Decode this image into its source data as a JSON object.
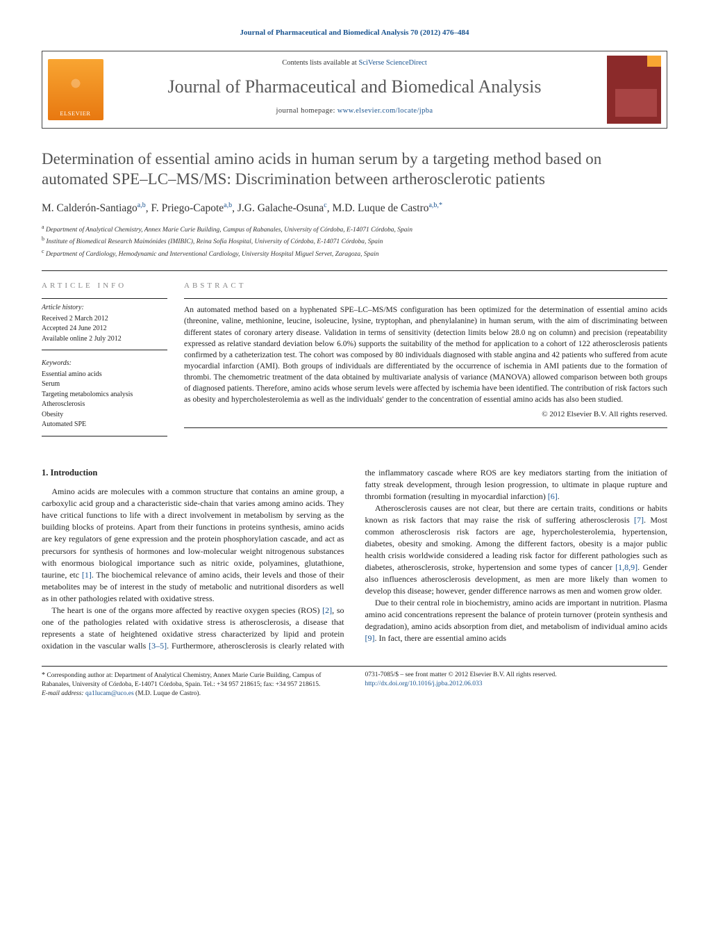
{
  "header": {
    "citation": "Journal of Pharmaceutical and Biomedical Analysis 70 (2012) 476–484",
    "contents_prefix": "Contents lists available at ",
    "contents_link": "SciVerse ScienceDirect",
    "journal_name": "Journal of Pharmaceutical and Biomedical Analysis",
    "homepage_prefix": "journal homepage: ",
    "homepage_url": "www.elsevier.com/locate/jpba",
    "publisher_logo_text": "ELSEVIER"
  },
  "article": {
    "title": "Determination of essential amino acids in human serum by a targeting method based on automated SPE–LC–MS/MS: Discrimination between artherosclerotic patients",
    "authors_html": "M. Calderón-Santiago",
    "author1": "M. Calderón-Santiago",
    "author1_aff": "a,b",
    "author2": "F. Priego-Capote",
    "author2_aff": "a,b",
    "author3": "J.G. Galache-Osuna",
    "author3_aff": "c",
    "author4": "M.D. Luque de Castro",
    "author4_aff": "a,b,",
    "author4_star": "*",
    "aff_a_sup": "a",
    "aff_a": " Department of Analytical Chemistry, Annex Marie Curie Building, Campus of Rabanales, University of Córdoba, E-14071 Córdoba, Spain",
    "aff_b_sup": "b",
    "aff_b": " Institute of Biomedical Research Maimónides (IMIBIC), Reina Sofía Hospital, University of Córdoba, E-14071 Córdoba, Spain",
    "aff_c_sup": "c",
    "aff_c": " Department of Cardiology, Hemodynamic and Interventional Cardiology, University Hospital Miguel Servet, Zaragoza, Spain"
  },
  "info": {
    "heading": "article info",
    "history_head": "Article history:",
    "received": "Received 2 March 2012",
    "accepted": "Accepted 24 June 2012",
    "online": "Available online 2 July 2012",
    "keywords_head": "Keywords:",
    "kw1": "Essential amino acids",
    "kw2": "Serum",
    "kw3": "Targeting metabolomics analysis",
    "kw4": "Atherosclerosis",
    "kw5": "Obesity",
    "kw6": "Automated SPE"
  },
  "abstract": {
    "heading": "abstract",
    "text": "An automated method based on a hyphenated SPE–LC–MS/MS configuration has been optimized for the determination of essential amino acids (threonine, valine, methionine, leucine, isoleucine, lysine, tryptophan, and phenylalanine) in human serum, with the aim of discriminating between different states of coronary artery disease. Validation in terms of sensitivity (detection limits below 28.0 ng on column) and precision (repeatability expressed as relative standard deviation below 6.0%) supports the suitability of the method for application to a cohort of 122 atherosclerosis patients confirmed by a catheterization test. The cohort was composed by 80 individuals diagnosed with stable angina and 42 patients who suffered from acute myocardial infarction (AMI). Both groups of individuals are differentiated by the occurrence of ischemia in AMI patients due to the formation of thrombi. The chemometric treatment of the data obtained by multivariate analysis of variance (MANOVA) allowed comparison between both groups of diagnosed patients. Therefore, amino acids whose serum levels were affected by ischemia have been identified. The contribution of risk factors such as obesity and hypercholesterolemia as well as the individuals' gender to the concentration of essential amino acids has also been studied.",
    "copyright": "© 2012 Elsevier B.V. All rights reserved."
  },
  "body": {
    "section1_head": "1. Introduction",
    "p1": "Amino acids are molecules with a common structure that contains an amine group, a carboxylic acid group and a characteristic side-chain that varies among amino acids. They have critical functions to life with a direct involvement in metabolism by serving as the building blocks of proteins. Apart from their functions in proteins synthesis, amino acids are key regulators of gene expression and the protein phosphorylation cascade, and act as precursors for synthesis of hormones and low-molecular weight nitrogenous substances with enormous biological importance such as nitric oxide, polyamines, glutathione, taurine, etc [1]. The biochemical relevance of amino acids, their levels and those of their metabolites may be of interest in the study of metabolic and nutritional disorders as well as in other pathologies related with oxidative stress.",
    "p2": "The heart is one of the organs more affected by reactive oxygen species (ROS) [2], so one of the pathologies related with oxidative stress is atherosclerosis, a disease that represents a state of heightened oxidative stress characterized by lipid and protein oxidation in the vascular walls [3–5]. Furthermore, atherosclerosis is clearly related with the inflammatory cascade where ROS are key mediators starting from the initiation of fatty streak development, through lesion progression, to ultimate in plaque rupture and thrombi formation (resulting in myocardial infarction) [6].",
    "p3": "Atherosclerosis causes are not clear, but there are certain traits, conditions or habits known as risk factors that may raise the risk of suffering atherosclerosis [7]. Most common atherosclerosis risk factors are age, hypercholesterolemia, hypertension, diabetes, obesity and smoking. Among the different factors, obesity is a major public health crisis worldwide considered a leading risk factor for different pathologies such as diabetes, atherosclerosis, stroke, hypertension and some types of cancer [1,8,9]. Gender also influences atherosclerosis development, as men are more likely than women to develop this disease; however, gender difference narrows as men and women grow older.",
    "p4": "Due to their central role in biochemistry, amino acids are important in nutrition. Plasma amino acid concentrations represent the balance of protein turnover (protein synthesis and degradation), amino acids absorption from diet, and metabolism of individual amino acids [9]. In fact, there are essential amino acids"
  },
  "footnotes": {
    "corr_star": "*",
    "corr": " Corresponding author at: Department of Analytical Chemistry, Annex Marie Curie Building, Campus of Rabanales, University of Córdoba, E-14071 Córdoba, Spain. Tel.: +34 957 218615; fax: +34 957 218615.",
    "email_label": "E-mail address: ",
    "email": "qa1lucam@uco.es",
    "email_paren": " (M.D. Luque de Castro).",
    "issn": "0731-7085/$ – see front matter © 2012 Elsevier B.V. All rights reserved.",
    "doi": "http://dx.doi.org/10.1016/j.jpba.2012.06.033"
  },
  "colors": {
    "link": "#1a5490",
    "title_gray": "#525252",
    "rule": "#222222",
    "elsevier_orange": "#e87810",
    "cover_red": "#8b2a2a"
  }
}
